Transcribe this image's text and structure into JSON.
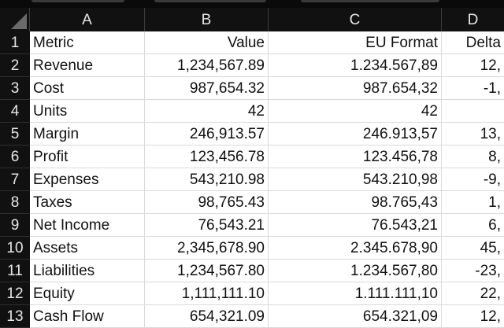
{
  "columns": [
    "A",
    "B",
    "C",
    "D"
  ],
  "rows": [
    {
      "num": "1",
      "a": "Metric",
      "b": "Value",
      "c": "EU Format",
      "d": "Delta"
    },
    {
      "num": "2",
      "a": "Revenue",
      "b": "1,234,567.89",
      "c": "1.234.567,89",
      "d": "12,"
    },
    {
      "num": "3",
      "a": "Cost",
      "b": "987,654.32",
      "c": "987.654,32",
      "d": "-1,"
    },
    {
      "num": "4",
      "a": "Units",
      "b": "42",
      "c": "42",
      "d": ""
    },
    {
      "num": "5",
      "a": "Margin",
      "b": "246,913.57",
      "c": "246.913,57",
      "d": "13,"
    },
    {
      "num": "6",
      "a": "Profit",
      "b": "123,456.78",
      "c": "123.456,78",
      "d": "8,"
    },
    {
      "num": "7",
      "a": "Expenses",
      "b": "543,210.98",
      "c": "543.210,98",
      "d": "-9,"
    },
    {
      "num": "8",
      "a": "Taxes",
      "b": "98,765.43",
      "c": "98.765,43",
      "d": "1,"
    },
    {
      "num": "9",
      "a": "Net Income",
      "b": "76,543.21",
      "c": "76.543,21",
      "d": "6,"
    },
    {
      "num": "10",
      "a": "Assets",
      "b": "2,345,678.90",
      "c": "2.345.678,90",
      "d": "45,"
    },
    {
      "num": "11",
      "a": "Liabilities",
      "b": "1,234,567.80",
      "c": "1.234.567,80",
      "d": "-23,"
    },
    {
      "num": "12",
      "a": "Equity",
      "b": "1,111,111.10",
      "c": "1.111.111,10",
      "d": "22,"
    },
    {
      "num": "13",
      "a": "Cash Flow",
      "b": "654,321.09",
      "c": "654.321,09",
      "d": "12,"
    }
  ]
}
